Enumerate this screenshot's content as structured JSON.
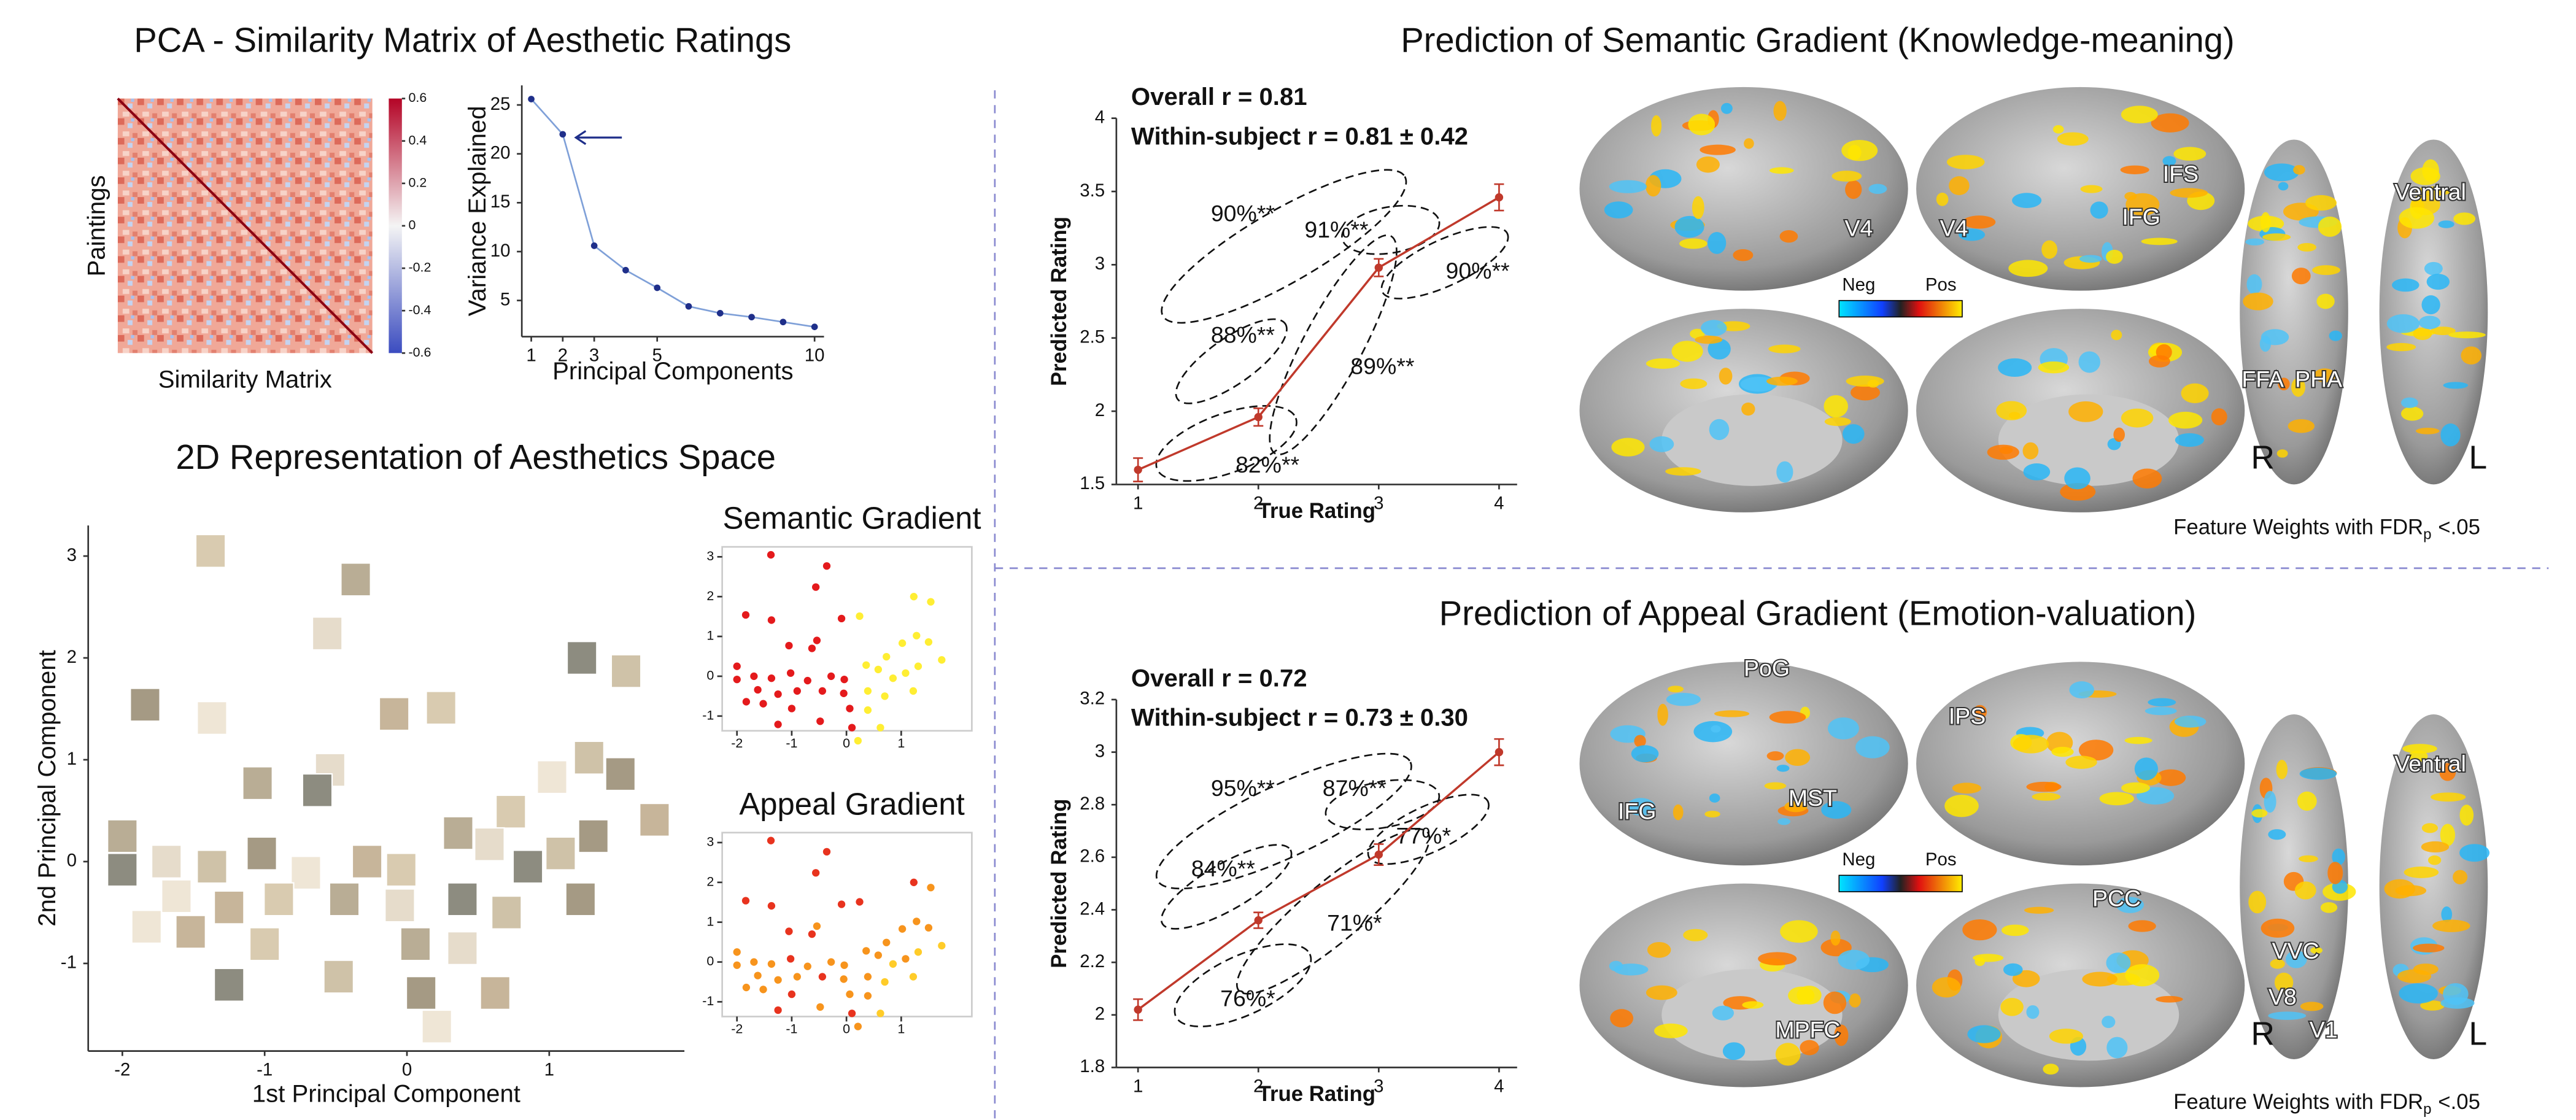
{
  "titles": [
    "PCA - Similarity Matrix of Aesthetic Ratings",
    "2D Representation of Aesthetics Space",
    "Prediction of Semantic Gradient (Knowledge-meaning)",
    "Prediction of Appeal Gradient (Emotion-valuation)"
  ],
  "chart_data": [
    {
      "type": "heatmap",
      "xlabel": "Similarity Matrix",
      "ylabel": "Paintings",
      "clim": [
        -0.6,
        0.6
      ],
      "cticks": [
        -0.6,
        -0.4,
        -0.2,
        0,
        0.2,
        0.4,
        0.6
      ]
    },
    {
      "type": "line",
      "xlabel": "Principal Components",
      "ylabel": "Variance Explained",
      "x": [
        1,
        2,
        3,
        4,
        5,
        6,
        7,
        8,
        9,
        10
      ],
      "values": [
        25.6,
        22,
        10.6,
        8.1,
        6.3,
        4.4,
        3.7,
        3.3,
        2.8,
        2.3
      ],
      "color": "#7fa0d8",
      "marker_color": "#1f2f8a",
      "xlim": [
        0.7,
        10.3
      ],
      "ylim": [
        1.3,
        27
      ],
      "xticks": [
        1,
        2,
        3,
        5,
        10
      ],
      "yticks": [
        5,
        10,
        15,
        20,
        25
      ]
    },
    {
      "type": "image-scatter",
      "xlabel": "1st Principal Component",
      "ylabel": "2nd Principal Component",
      "x": [
        -1.38,
        -0.36,
        -0.56,
        1.23,
        1.54,
        -1.84,
        -1.37,
        -0.09,
        0.24,
        -1.05,
        -0.54,
        -0.63,
        1.28,
        1.5,
        1.02,
        1.74,
        0.73,
        -2.0,
        -1.69,
        -2.0,
        -1.37,
        -1.02,
        -0.71,
        -0.28,
        -0.04,
        0.36,
        0.58,
        0.85,
        1.08,
        1.31,
        -1.62,
        -1.25,
        -0.9,
        -0.44,
        -0.05,
        0.39,
        0.7,
        1.22,
        -1.83,
        -1.52,
        -1.0,
        0.06,
        0.39,
        -1.25,
        -0.48,
        0.1,
        0.21,
        0.62
      ],
      "y": [
        3.05,
        2.77,
        2.24,
        2.0,
        1.87,
        1.54,
        1.41,
        1.45,
        1.51,
        0.77,
        0.9,
        0.7,
        1.02,
        0.86,
        0.83,
        0.41,
        0.49,
        0.25,
        0.0,
        -0.08,
        -0.05,
        0.08,
        -0.11,
        0.0,
        -0.08,
        0.28,
        0.17,
        -0.05,
        0.08,
        0.25,
        -0.34,
        -0.45,
        -0.37,
        -0.37,
        -0.43,
        -0.37,
        -0.5,
        -0.37,
        -0.64,
        -0.69,
        -0.81,
        -0.81,
        -0.85,
        -1.21,
        -1.13,
        -1.29,
        -1.62,
        -1.29
      ],
      "xlim": [
        -2.24,
        1.95
      ],
      "ylim": [
        -1.86,
        3.3
      ],
      "xticks": [
        -2,
        -1,
        0,
        1
      ],
      "yticks": [
        -1,
        0,
        1,
        2,
        3
      ]
    },
    {
      "type": "scatter",
      "title": "Semantic Gradient",
      "x": [
        -1.38,
        -0.36,
        -0.56,
        1.23,
        1.54,
        -1.84,
        -1.37,
        -0.09,
        0.24,
        -1.05,
        -0.54,
        -0.63,
        1.28,
        1.5,
        1.02,
        1.74,
        0.73,
        -2.0,
        -1.69,
        -2.0,
        -1.37,
        -1.02,
        -0.71,
        -0.28,
        -0.04,
        0.36,
        0.58,
        0.85,
        1.08,
        1.31,
        -1.62,
        -1.25,
        -0.9,
        -0.44,
        -0.05,
        0.39,
        0.7,
        1.22,
        -1.83,
        -1.52,
        -1.0,
        0.06,
        0.39,
        -1.25,
        -0.48,
        0.1,
        0.21,
        0.62
      ],
      "y": [
        3.05,
        2.77,
        2.24,
        2.0,
        1.87,
        1.54,
        1.41,
        1.45,
        1.51,
        0.77,
        0.9,
        0.7,
        1.02,
        0.86,
        0.83,
        0.41,
        0.49,
        0.25,
        0.0,
        -0.08,
        -0.05,
        0.08,
        -0.11,
        0.0,
        -0.08,
        0.28,
        0.17,
        -0.05,
        0.08,
        0.25,
        -0.34,
        -0.45,
        -0.37,
        -0.37,
        -0.43,
        -0.37,
        -0.5,
        -0.37,
        -0.64,
        -0.69,
        -0.81,
        -0.81,
        -0.85,
        -1.21,
        -1.13,
        -1.29,
        -1.62,
        -1.29
      ],
      "colors": [
        "#e41a1c",
        "#e41a1c",
        "#e41a1c",
        "#ffee33",
        "#ffee33",
        "#e41a1c",
        "#e41a1c",
        "#e41a1c",
        "#ffee33",
        "#e41a1c",
        "#e41a1c",
        "#e41a1c",
        "#ffee33",
        "#ffee33",
        "#ffee33",
        "#ffee33",
        "#ffee33",
        "#e41a1c",
        "#e41a1c",
        "#e41a1c",
        "#e41a1c",
        "#e41a1c",
        "#e41a1c",
        "#e41a1c",
        "#e41a1c",
        "#ffee33",
        "#ffee33",
        "#ffee33",
        "#ffee33",
        "#ffee33",
        "#e41a1c",
        "#e41a1c",
        "#e41a1c",
        "#e41a1c",
        "#e41a1c",
        "#ffee33",
        "#ffee33",
        "#ffee33",
        "#e41a1c",
        "#e41a1c",
        "#e41a1c",
        "#e41a1c",
        "#ffee33",
        "#e41a1c",
        "#e41a1c",
        "#e41a1c",
        "#ffee33",
        "#ffee33"
      ],
      "xlim": [
        -2.27,
        2.29
      ],
      "ylim": [
        -1.37,
        3.25
      ],
      "xticks": [
        -2,
        -1,
        0,
        1
      ],
      "yticks": [
        -1,
        0,
        1,
        2,
        3
      ]
    },
    {
      "type": "scatter",
      "title": "Appeal Gradient",
      "x": [
        -1.38,
        -0.36,
        -0.56,
        1.23,
        1.54,
        -1.84,
        -1.37,
        -0.09,
        0.24,
        -1.05,
        -0.54,
        -0.63,
        1.28,
        1.5,
        1.02,
        1.74,
        0.73,
        -2.0,
        -1.69,
        -2.0,
        -1.37,
        -1.02,
        -0.71,
        -0.28,
        -0.04,
        0.36,
        0.58,
        0.85,
        1.08,
        1.31,
        -1.62,
        -1.25,
        -0.9,
        -0.44,
        -0.05,
        0.39,
        0.7,
        1.22,
        -1.83,
        -1.52,
        -1.0,
        0.06,
        0.39,
        -1.25,
        -0.48,
        0.1,
        0.21,
        0.62
      ],
      "y": [
        3.05,
        2.77,
        2.24,
        2.0,
        1.87,
        1.54,
        1.41,
        1.45,
        1.51,
        0.77,
        0.9,
        0.7,
        1.02,
        0.86,
        0.83,
        0.41,
        0.49,
        0.25,
        0.0,
        -0.08,
        -0.05,
        0.08,
        -0.11,
        0.0,
        -0.08,
        0.28,
        0.17,
        -0.05,
        0.08,
        0.25,
        -0.34,
        -0.45,
        -0.37,
        -0.37,
        -0.43,
        -0.37,
        -0.5,
        -0.37,
        -0.64,
        -0.69,
        -0.81,
        -0.81,
        -0.85,
        -1.21,
        -1.13,
        -1.29,
        -1.62,
        -1.29
      ],
      "colors": [
        "#e8331e",
        "#e8331e",
        "#e8331e",
        "#e8331e",
        "#f7941d",
        "#e8331e",
        "#e8331e",
        "#e8331e",
        "#e8331e",
        "#e8331e",
        "#f7941d",
        "#e8331e",
        "#f7941d",
        "#f7941d",
        "#f7941d",
        "#ffcc29",
        "#f7941d",
        "#f7941d",
        "#f7941d",
        "#f7941d",
        "#f7941d",
        "#e8331e",
        "#f7941d",
        "#f7941d",
        "#f7941d",
        "#f7941d",
        "#f7941d",
        "#ffcc29",
        "#f7941d",
        "#ffcc29",
        "#f7941d",
        "#f7941d",
        "#f7941d",
        "#e8331e",
        "#f7941d",
        "#f7941d",
        "#ffcc29",
        "#ffcc29",
        "#f7941d",
        "#f7941d",
        "#e8331e",
        "#f7941d",
        "#f7941d",
        "#e8331e",
        "#f7941d",
        "#e8331e",
        "#f7941d",
        "#ffcc29"
      ],
      "xlim": [
        -2.27,
        2.29
      ],
      "ylim": [
        -1.37,
        3.25
      ],
      "xticks": [
        -2,
        -1,
        0,
        1
      ],
      "yticks": [
        -1,
        0,
        1,
        2,
        3
      ]
    },
    {
      "type": "errorbar-line",
      "xlabel": "True Rating",
      "ylabel": "Predicted Rating",
      "annotations": [
        "Overall r = 0.81",
        "Within-subject r  = 0.81 ± 0.42"
      ],
      "percent_labels": [
        "90%**",
        "91%**",
        "88%**",
        "89%**",
        "82%**",
        "90%**"
      ],
      "x": [
        1,
        2,
        3,
        4
      ],
      "values": [
        1.6,
        1.96,
        2.98,
        3.46
      ],
      "errors": [
        0.08,
        0.06,
        0.06,
        0.09
      ],
      "color": "#c0392b",
      "xlim": [
        0.82,
        4.15
      ],
      "ylim": [
        1.5,
        4
      ],
      "xticks": [
        1,
        2,
        3,
        4
      ],
      "yticks": [
        1.5,
        2,
        2.5,
        3,
        3.5,
        4
      ]
    },
    {
      "type": "errorbar-line",
      "xlabel": "True Rating",
      "ylabel": "Predicted Rating",
      "annotations": [
        "Overall r = 0.72",
        "Within-subject r  = 0.73 ± 0.30"
      ],
      "percent_labels": [
        "95%**",
        "87%**",
        "84%**",
        "77%*",
        "71%*",
        "76%*"
      ],
      "x": [
        1,
        2,
        3,
        4
      ],
      "values": [
        2.02,
        2.36,
        2.61,
        3.0
      ],
      "errors": [
        0.04,
        0.03,
        0.04,
        0.05
      ],
      "color": "#c0392b",
      "xlim": [
        0.82,
        4.15
      ],
      "ylim": [
        1.8,
        3.2
      ],
      "xticks": [
        1,
        2,
        3,
        4
      ],
      "yticks": [
        1.8,
        2,
        2.2,
        2.4,
        2.6,
        2.8,
        3,
        3.2
      ]
    }
  ],
  "brain_maps": [
    {
      "labels": [
        "V4",
        "V4",
        "IFS",
        "IFG",
        "FFA",
        "PHA",
        "Ventral",
        "R",
        "L"
      ],
      "neg": "Neg",
      "pos": "Pos",
      "footnote": {
        "text": "Feature Weights with FDR",
        "sub": "p",
        "tail": "<.05"
      }
    },
    {
      "labels": [
        "PoG",
        "IPS",
        "IFG",
        "MST",
        "PCC",
        "MPFC",
        "VVC",
        "V8",
        "V1",
        "Ventral",
        "R",
        "L"
      ],
      "neg": "Neg",
      "pos": "Pos",
      "footnote": {
        "text": "Feature Weights with FDR",
        "sub": "p",
        "tail": "<.05"
      }
    }
  ]
}
